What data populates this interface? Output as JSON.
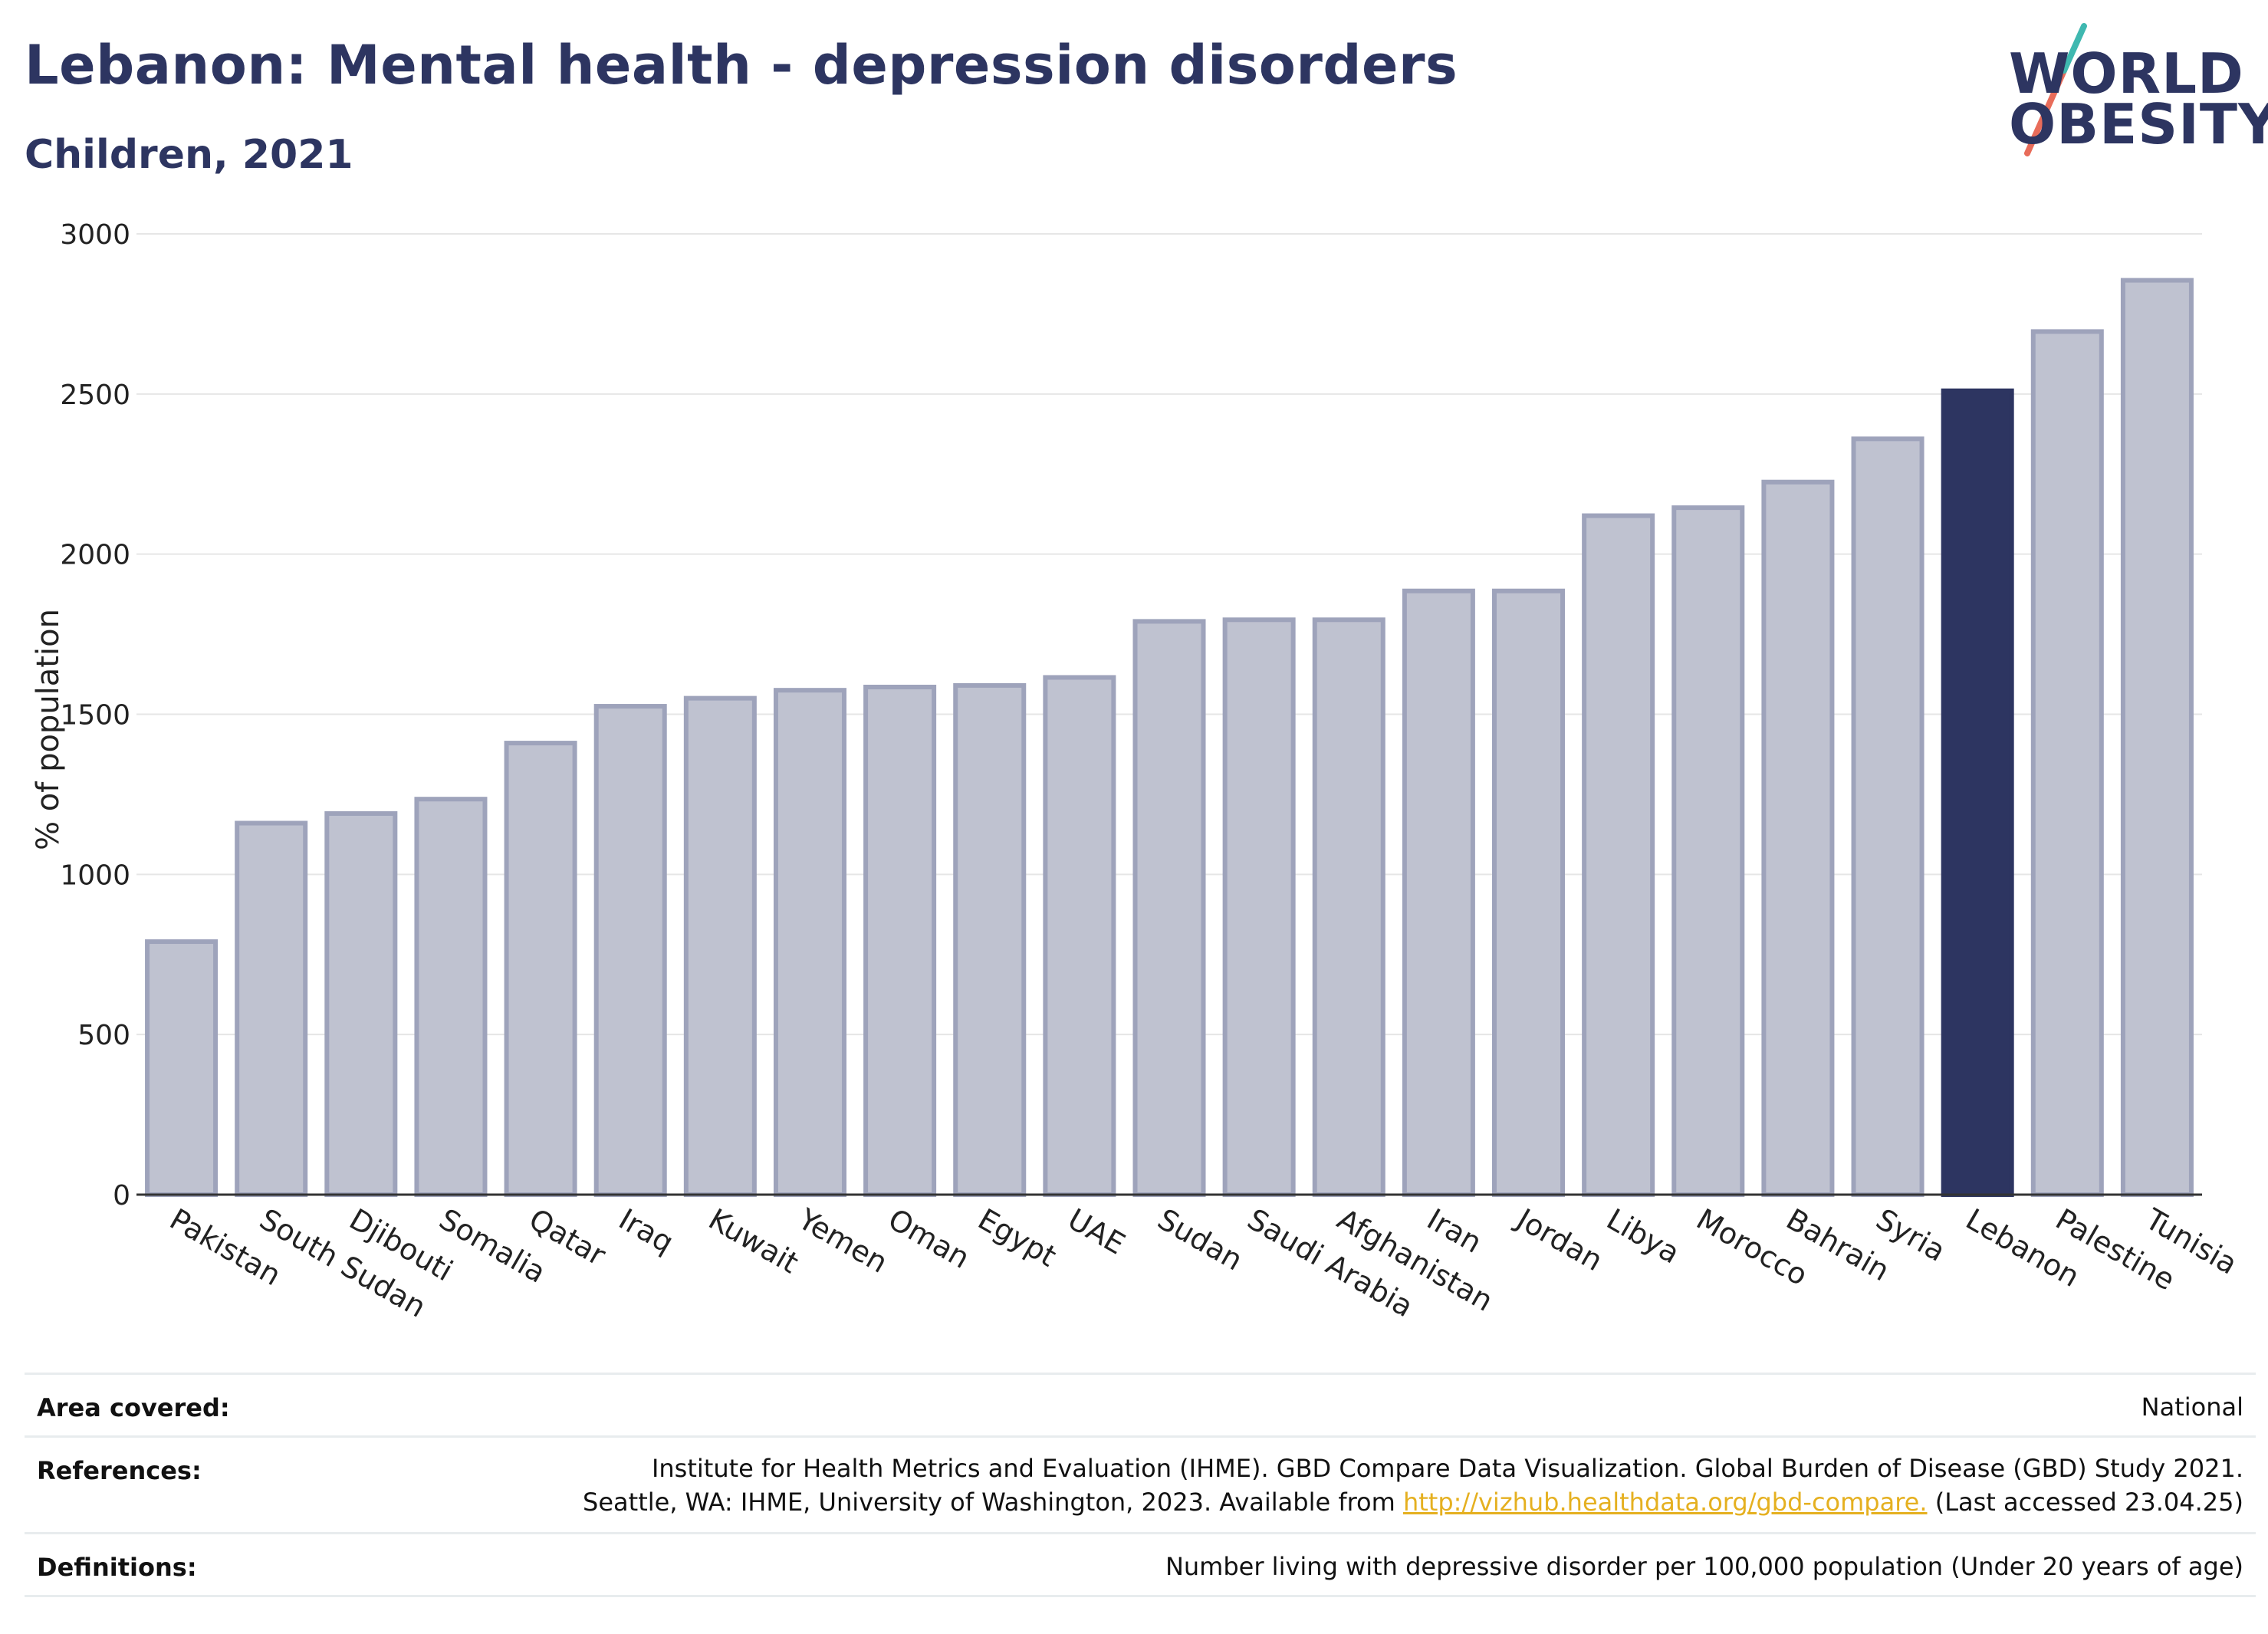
{
  "title": "Lebanon: Mental health - depression disorders",
  "subtitle": "Children, 2021",
  "logo": {
    "line1": "WORLD",
    "line2": "OBESITY"
  },
  "colors": {
    "bar_default": "#bfc2d0",
    "bar_border": "#9ea3bb",
    "bar_highlight": "#2d3561",
    "title": "#2d3561",
    "link": "#e5b020",
    "logo_teal": "#3fb8b0",
    "logo_coral": "#e86c5a"
  },
  "chart_data": {
    "type": "bar",
    "ylabel": "% of population",
    "ylim": [
      0,
      3000
    ],
    "yticks": [
      0,
      500,
      1000,
      1500,
      2000,
      2500,
      3000
    ],
    "grid": true,
    "highlight": "Lebanon",
    "categories": [
      "Pakistan",
      "South Sudan",
      "Djibouti",
      "Somalia",
      "Qatar",
      "Iraq",
      "Kuwait",
      "Yemen",
      "Oman",
      "Egypt",
      "UAE",
      "Sudan",
      "Saudi Arabia",
      "Afghanistan",
      "Iran",
      "Jordan",
      "Libya",
      "Morocco",
      "Bahrain",
      "Syria",
      "Lebanon",
      "Palestine",
      "Tunisia"
    ],
    "values": [
      790,
      1160,
      1190,
      1235,
      1410,
      1525,
      1550,
      1575,
      1585,
      1590,
      1615,
      1790,
      1795,
      1795,
      1885,
      1885,
      2120,
      2145,
      2225,
      2360,
      2510,
      2695,
      2855
    ]
  },
  "info": {
    "area_label": "Area covered:",
    "area_value": "National",
    "references_label": "References:",
    "references_line1": "Institute for Health Metrics and Evaluation (IHME). GBD Compare Data Visualization. Global Burden of Disease (GBD) Study 2021.",
    "references_line2_pre": "Seattle, WA: IHME, University of Washington, 2023. Available from ",
    "references_link": "http://vizhub.healthdata.org/gbd-compare.",
    "references_line2_post": " (Last accessed 23.04.25)",
    "definitions_label": "Definitions:",
    "definitions_value": "Number living with depressive disorder per 100,000 population (Under 20 years of age)"
  }
}
